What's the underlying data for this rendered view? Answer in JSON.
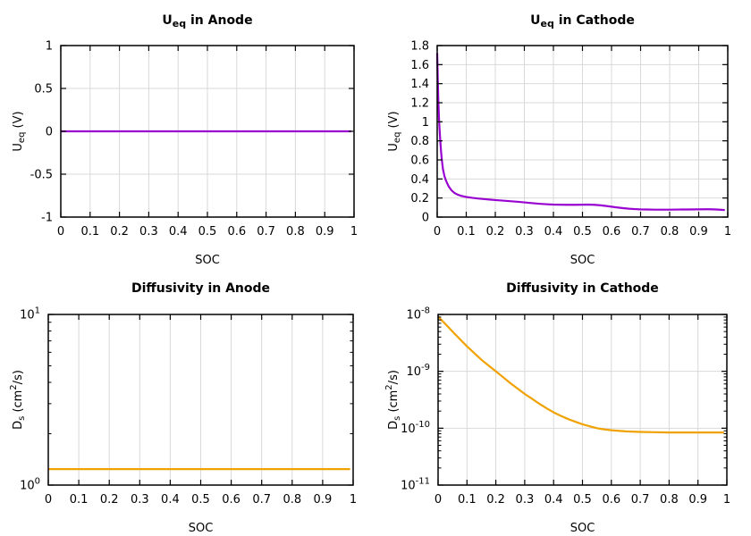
{
  "page": {
    "background": "#ffffff"
  },
  "colors": {
    "purple": "#9903d1",
    "orange": "#f0a202",
    "grid": "#d9d9d9",
    "border": "#000000",
    "text": "#000000"
  },
  "chart_data": [
    {
      "id": "ueq-anode",
      "type": "line",
      "title": [
        [
          "U"
        ],
        [
          "eq",
          "sub"
        ],
        [
          " in Anode"
        ]
      ],
      "xlabel": "SOC",
      "ylabel": [
        [
          "U"
        ],
        [
          "eq",
          "sub"
        ],
        [
          " (V)"
        ]
      ],
      "x": {
        "min": 0,
        "max": 1,
        "ticks": [
          {
            "v": 0,
            "l": "0"
          },
          {
            "v": 0.1,
            "l": "0.1"
          },
          {
            "v": 0.2,
            "l": "0.2"
          },
          {
            "v": 0.3,
            "l": "0.3"
          },
          {
            "v": 0.4,
            "l": "0.4"
          },
          {
            "v": 0.5,
            "l": "0.5"
          },
          {
            "v": 0.6,
            "l": "0.6"
          },
          {
            "v": 0.7,
            "l": "0.7"
          },
          {
            "v": 0.8,
            "l": "0.8"
          },
          {
            "v": 0.9,
            "l": "0.9"
          },
          {
            "v": 1,
            "l": "1"
          }
        ]
      },
      "y": {
        "scale": "linear",
        "min": -1,
        "max": 1,
        "ticks": [
          {
            "v": -1,
            "l": "-1"
          },
          {
            "v": -0.5,
            "l": "-0.5"
          },
          {
            "v": 0,
            "l": "0"
          },
          {
            "v": 0.5,
            "l": "0.5"
          },
          {
            "v": 1,
            "l": "1"
          }
        ]
      },
      "series": [
        {
          "name": "ueq-anode-line",
          "color": "purple",
          "points": [
            [
              0,
              0
            ],
            [
              0.99,
              0
            ]
          ]
        }
      ]
    },
    {
      "id": "ueq-cathode",
      "type": "line",
      "title": [
        [
          "U"
        ],
        [
          "eq",
          "sub"
        ],
        [
          " in Cathode"
        ]
      ],
      "xlabel": "SOC",
      "ylabel": [
        [
          "U"
        ],
        [
          "eq",
          "sub"
        ],
        [
          " (V)"
        ]
      ],
      "x": {
        "min": 0,
        "max": 1,
        "ticks": [
          {
            "v": 0,
            "l": "0"
          },
          {
            "v": 0.1,
            "l": "0.1"
          },
          {
            "v": 0.2,
            "l": "0.2"
          },
          {
            "v": 0.3,
            "l": "0.3"
          },
          {
            "v": 0.4,
            "l": "0.4"
          },
          {
            "v": 0.5,
            "l": "0.5"
          },
          {
            "v": 0.6,
            "l": "0.6"
          },
          {
            "v": 0.7,
            "l": "0.7"
          },
          {
            "v": 0.8,
            "l": "0.8"
          },
          {
            "v": 0.9,
            "l": "0.9"
          },
          {
            "v": 1,
            "l": "1"
          }
        ]
      },
      "y": {
        "scale": "linear",
        "min": 0,
        "max": 1.8,
        "ticks": [
          {
            "v": 0,
            "l": "0"
          },
          {
            "v": 0.2,
            "l": "0.2"
          },
          {
            "v": 0.4,
            "l": "0.4"
          },
          {
            "v": 0.6,
            "l": "0.6"
          },
          {
            "v": 0.8,
            "l": "0.8"
          },
          {
            "v": 1,
            "l": "1"
          },
          {
            "v": 1.2,
            "l": "1.2"
          },
          {
            "v": 1.4,
            "l": "1.4"
          },
          {
            "v": 1.6,
            "l": "1.6"
          },
          {
            "v": 1.8,
            "l": "1.8"
          }
        ]
      },
      "series": [
        {
          "name": "ueq-cathode-line",
          "color": "purple",
          "points": [
            [
              0,
              1.72
            ],
            [
              0.002,
              1.45
            ],
            [
              0.004,
              1.22
            ],
            [
              0.006,
              1.05
            ],
            [
              0.008,
              0.93
            ],
            [
              0.01,
              0.83
            ],
            [
              0.013,
              0.7
            ],
            [
              0.016,
              0.6
            ],
            [
              0.02,
              0.5
            ],
            [
              0.025,
              0.43
            ],
            [
              0.03,
              0.385
            ],
            [
              0.035,
              0.35
            ],
            [
              0.04,
              0.32
            ],
            [
              0.05,
              0.278
            ],
            [
              0.06,
              0.252
            ],
            [
              0.07,
              0.236
            ],
            [
              0.08,
              0.225
            ],
            [
              0.09,
              0.217
            ],
            [
              0.1,
              0.211
            ],
            [
              0.12,
              0.202
            ],
            [
              0.14,
              0.195
            ],
            [
              0.16,
              0.189
            ],
            [
              0.18,
              0.184
            ],
            [
              0.2,
              0.179
            ],
            [
              0.22,
              0.174
            ],
            [
              0.25,
              0.167
            ],
            [
              0.28,
              0.16
            ],
            [
              0.3,
              0.154
            ],
            [
              0.32,
              0.148
            ],
            [
              0.35,
              0.14
            ],
            [
              0.38,
              0.134
            ],
            [
              0.4,
              0.131
            ],
            [
              0.42,
              0.13
            ],
            [
              0.45,
              0.129
            ],
            [
              0.48,
              0.129
            ],
            [
              0.5,
              0.13
            ],
            [
              0.52,
              0.131
            ],
            [
              0.54,
              0.129
            ],
            [
              0.56,
              0.124
            ],
            [
              0.58,
              0.117
            ],
            [
              0.6,
              0.109
            ],
            [
              0.62,
              0.101
            ],
            [
              0.64,
              0.094
            ],
            [
              0.66,
              0.088
            ],
            [
              0.68,
              0.084
            ],
            [
              0.7,
              0.081
            ],
            [
              0.72,
              0.08
            ],
            [
              0.75,
              0.078
            ],
            [
              0.78,
              0.078
            ],
            [
              0.8,
              0.078
            ],
            [
              0.83,
              0.079
            ],
            [
              0.86,
              0.08
            ],
            [
              0.89,
              0.081
            ],
            [
              0.92,
              0.082
            ],
            [
              0.94,
              0.082
            ],
            [
              0.96,
              0.08
            ],
            [
              0.98,
              0.076
            ],
            [
              0.99,
              0.073
            ]
          ]
        }
      ]
    },
    {
      "id": "diffusivity-anode",
      "type": "line",
      "title": [
        [
          "Diffusivity in Anode"
        ]
      ],
      "xlabel": "SOC",
      "ylabel": [
        [
          "D"
        ],
        [
          "s",
          "sub"
        ],
        [
          " (cm"
        ],
        [
          "2",
          "sup"
        ],
        [
          "/s)"
        ]
      ],
      "x": {
        "min": 0,
        "max": 1,
        "ticks": [
          {
            "v": 0,
            "l": "0"
          },
          {
            "v": 0.1,
            "l": "0.1"
          },
          {
            "v": 0.2,
            "l": "0.2"
          },
          {
            "v": 0.3,
            "l": "0.3"
          },
          {
            "v": 0.4,
            "l": "0.4"
          },
          {
            "v": 0.5,
            "l": "0.5"
          },
          {
            "v": 0.6,
            "l": "0.6"
          },
          {
            "v": 0.7,
            "l": "0.7"
          },
          {
            "v": 0.8,
            "l": "0.8"
          },
          {
            "v": 0.9,
            "l": "0.9"
          },
          {
            "v": 1,
            "l": "1"
          }
        ]
      },
      "y": {
        "scale": "log",
        "min": 1,
        "max": 10,
        "ticks": [
          {
            "v": 1,
            "l": [
              [
                "10"
              ],
              [
                "0",
                "sup"
              ]
            ]
          },
          {
            "v": 10,
            "l": [
              [
                "10"
              ],
              [
                "1",
                "sup"
              ]
            ]
          }
        ]
      },
      "series": [
        {
          "name": "diffusivity-anode-line",
          "color": "orange",
          "points": [
            [
              0,
              1.24
            ],
            [
              0.99,
              1.24
            ]
          ]
        }
      ]
    },
    {
      "id": "diffusivity-cathode",
      "type": "line",
      "title": [
        [
          "Diffusivity in Cathode"
        ]
      ],
      "xlabel": "SOC",
      "ylabel": [
        [
          "D"
        ],
        [
          "s",
          "sub"
        ],
        [
          " (cm"
        ],
        [
          "2",
          "sup"
        ],
        [
          "/s)"
        ]
      ],
      "x": {
        "min": 0,
        "max": 1,
        "ticks": [
          {
            "v": 0,
            "l": "0"
          },
          {
            "v": 0.1,
            "l": "0.1"
          },
          {
            "v": 0.2,
            "l": "0.2"
          },
          {
            "v": 0.3,
            "l": "0.3"
          },
          {
            "v": 0.4,
            "l": "0.4"
          },
          {
            "v": 0.5,
            "l": "0.5"
          },
          {
            "v": 0.6,
            "l": "0.6"
          },
          {
            "v": 0.7,
            "l": "0.7"
          },
          {
            "v": 0.8,
            "l": "0.8"
          },
          {
            "v": 0.9,
            "l": "0.9"
          },
          {
            "v": 1,
            "l": "1"
          }
        ]
      },
      "y": {
        "scale": "log",
        "min": 1e-11,
        "max": 1e-08,
        "ticks": [
          {
            "v": 1e-08,
            "l": [
              [
                "10"
              ],
              [
                "-8",
                "sup"
              ]
            ]
          },
          {
            "v": 1e-09,
            "l": [
              [
                "10"
              ],
              [
                "-9",
                "sup"
              ]
            ]
          },
          {
            "v": 1e-10,
            "l": [
              [
                "10"
              ],
              [
                "-10",
                "sup"
              ]
            ]
          },
          {
            "v": 1e-11,
            "l": [
              [
                "10"
              ],
              [
                "-11",
                "sup"
              ]
            ]
          }
        ]
      },
      "series": [
        {
          "name": "diffusivity-cathode-line",
          "color": "orange",
          "points": [
            [
              0,
              9.2e-09
            ],
            [
              0.025,
              6.8e-09
            ],
            [
              0.05,
              5e-09
            ],
            [
              0.075,
              3.7e-09
            ],
            [
              0.1,
              2.75e-09
            ],
            [
              0.125,
              2.1e-09
            ],
            [
              0.15,
              1.6e-09
            ],
            [
              0.175,
              1.26e-09
            ],
            [
              0.2,
              1e-09
            ],
            [
              0.225,
              7.9e-10
            ],
            [
              0.25,
              6.2e-10
            ],
            [
              0.275,
              5e-10
            ],
            [
              0.3,
              4e-10
            ],
            [
              0.325,
              3.3e-10
            ],
            [
              0.35,
              2.7e-10
            ],
            [
              0.375,
              2.25e-10
            ],
            [
              0.4,
              1.9e-10
            ],
            [
              0.425,
              1.65e-10
            ],
            [
              0.45,
              1.45e-10
            ],
            [
              0.475,
              1.3e-10
            ],
            [
              0.5,
              1.17e-10
            ],
            [
              0.525,
              1.08e-10
            ],
            [
              0.55,
              1e-10
            ],
            [
              0.575,
              9.55e-11
            ],
            [
              0.6,
              9.2e-11
            ],
            [
              0.65,
              8.8e-11
            ],
            [
              0.7,
              8.6e-11
            ],
            [
              0.75,
              8.5e-11
            ],
            [
              0.8,
              8.4e-11
            ],
            [
              0.85,
              8.4e-11
            ],
            [
              0.9,
              8.4e-11
            ],
            [
              0.95,
              8.4e-11
            ],
            [
              0.99,
              8.4e-11
            ]
          ]
        }
      ]
    }
  ]
}
